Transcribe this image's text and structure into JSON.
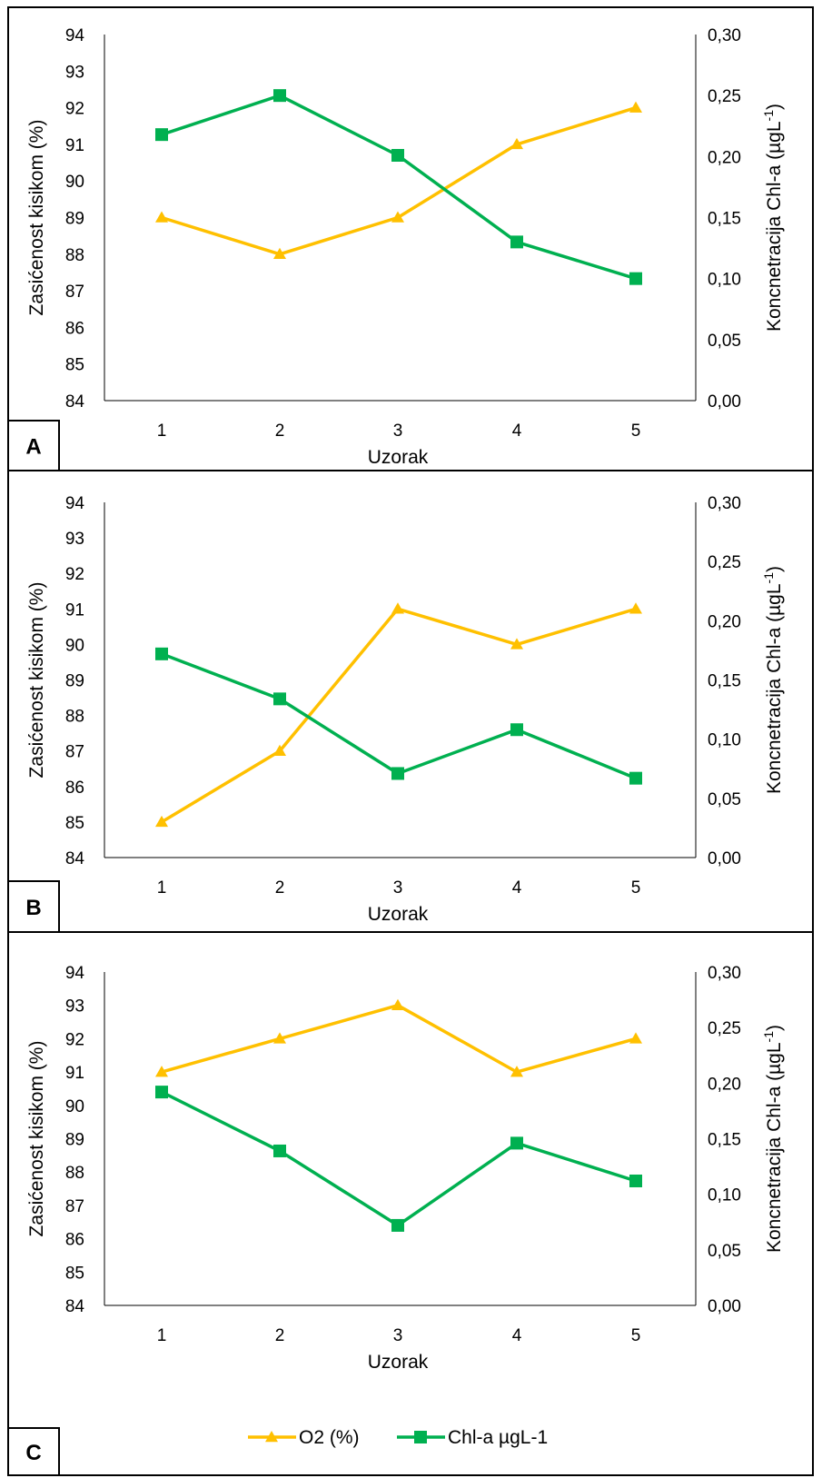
{
  "chart_data": [
    {
      "panel_label": "A",
      "type": "line",
      "categories": [
        "1",
        "2",
        "3",
        "4",
        "5"
      ],
      "xlabel": "Uzorak",
      "ylabel": "Zasićenost kisikom (%)",
      "y2label_main": "Koncnetracija Chl-a (µgL",
      "y2label_sup": "-1",
      "y2label_close": ")",
      "ylim": [
        84,
        94
      ],
      "y2lim": [
        0,
        0.3
      ],
      "yticks": [
        "84",
        "85",
        "86",
        "87",
        "88",
        "89",
        "90",
        "91",
        "92",
        "93",
        "94"
      ],
      "y2ticks": [
        "0,00",
        "0,05",
        "0,10",
        "0,15",
        "0,20",
        "0,25",
        "0,30"
      ],
      "series": [
        {
          "name": "O2 (%)",
          "axis": "left",
          "marker": "triangle",
          "color": "#FFC000",
          "values": [
            89,
            88,
            89,
            91,
            92
          ]
        },
        {
          "name": "Chl-a µgL-1",
          "axis": "right",
          "marker": "square",
          "color": "#00B050",
          "values": [
            0.218,
            0.25,
            0.201,
            0.13,
            0.1
          ]
        }
      ]
    },
    {
      "panel_label": "B",
      "type": "line",
      "categories": [
        "1",
        "2",
        "3",
        "4",
        "5"
      ],
      "xlabel": "Uzorak",
      "ylabel": "Zasićenost kisikom (%)",
      "y2label_main": "Koncnetracija Chl-a (µgL",
      "y2label_sup": "-1",
      "y2label_close": ")",
      "ylim": [
        84,
        94
      ],
      "y2lim": [
        0,
        0.3
      ],
      "yticks": [
        "84",
        "85",
        "86",
        "87",
        "88",
        "89",
        "90",
        "91",
        "92",
        "93",
        "94"
      ],
      "y2ticks": [
        "0,00",
        "0,05",
        "0,10",
        "0,15",
        "0,20",
        "0,25",
        "0,30"
      ],
      "series": [
        {
          "name": "O2 (%)",
          "axis": "left",
          "marker": "triangle",
          "color": "#FFC000",
          "values": [
            85,
            87,
            91,
            90,
            91
          ]
        },
        {
          "name": "Chl-a µgL-1",
          "axis": "right",
          "marker": "square",
          "color": "#00B050",
          "values": [
            0.172,
            0.134,
            0.071,
            0.108,
            0.067
          ]
        }
      ]
    },
    {
      "panel_label": "C",
      "type": "line",
      "categories": [
        "1",
        "2",
        "3",
        "4",
        "5"
      ],
      "xlabel": "Uzorak",
      "ylabel": "Zasićenost kisikom (%)",
      "y2label_main": "Koncnetracija Chl-a (µgL",
      "y2label_sup": "-1",
      "y2label_close": ")",
      "ylim": [
        84,
        94
      ],
      "y2lim": [
        0,
        0.3
      ],
      "yticks": [
        "84",
        "85",
        "86",
        "87",
        "88",
        "89",
        "90",
        "91",
        "92",
        "93",
        "94"
      ],
      "y2ticks": [
        "0,00",
        "0,05",
        "0,10",
        "0,15",
        "0,20",
        "0,25",
        "0,30"
      ],
      "series": [
        {
          "name": "O2 (%)",
          "axis": "left",
          "marker": "triangle",
          "color": "#FFC000",
          "values": [
            91,
            92,
            93,
            91,
            92
          ]
        },
        {
          "name": "Chl-a µgL-1",
          "axis": "right",
          "marker": "square",
          "color": "#00B050",
          "values": [
            0.192,
            0.139,
            0.072,
            0.146,
            0.112
          ]
        }
      ],
      "legend": {
        "placement": "bottom",
        "entries": [
          {
            "label": "O2 (%)",
            "marker": "triangle",
            "color": "#FFC000"
          },
          {
            "label": "Chl-a µgL-1",
            "marker": "square",
            "color": "#00B050"
          }
        ]
      }
    }
  ]
}
